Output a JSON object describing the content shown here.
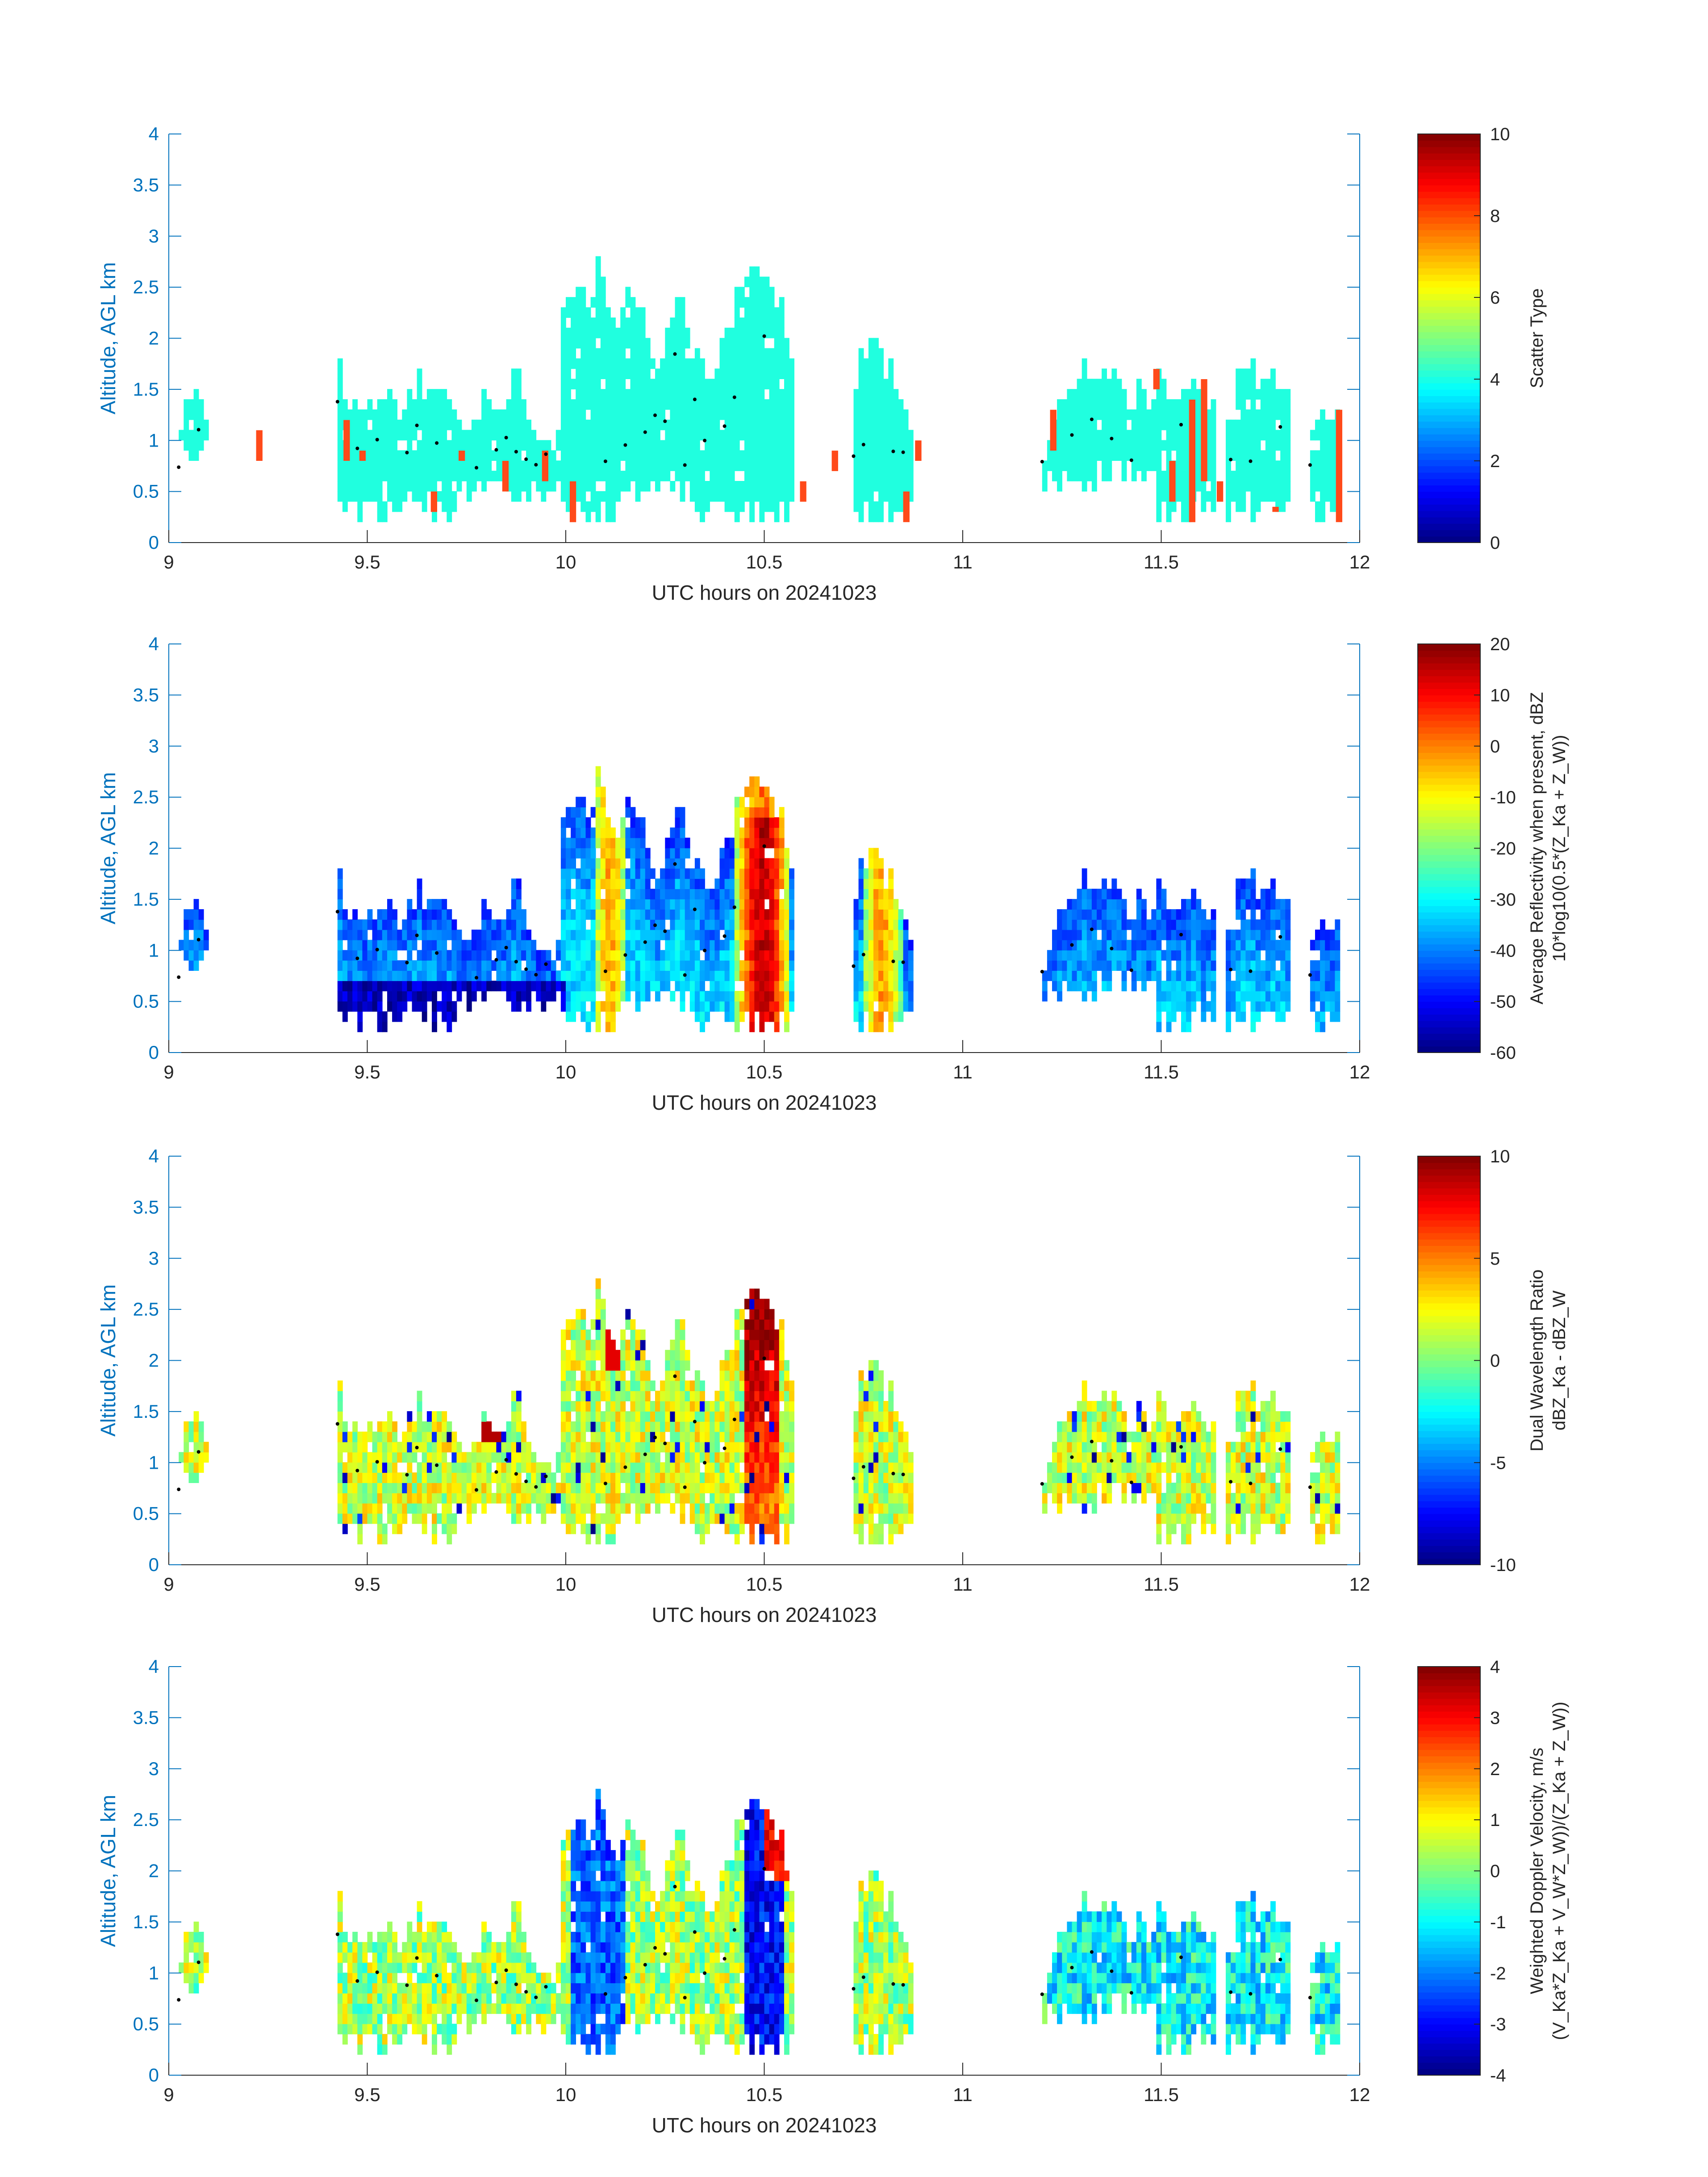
{
  "figure": {
    "x_range": [
      9,
      12
    ],
    "x_ticks": [
      "9",
      "9.5",
      "10",
      "10.5",
      "11",
      "11.5",
      "12"
    ],
    "y_range": [
      0,
      4
    ],
    "y_ticks": [
      "0",
      "0.5",
      "1",
      "1.5",
      "2",
      "2.5",
      "3",
      "3.5",
      "4"
    ],
    "xlabel": "UTC hours on 20241023",
    "ylabel": "Altitude, AGL km",
    "axis_color": "#0072BD",
    "tick_text_color": "#0072BD"
  },
  "chart_data": [
    {
      "type": "heatmap",
      "xlabel": "UTC hours on 20241023",
      "ylabel": "Altitude, AGL km",
      "xlim": [
        9,
        12
      ],
      "ylim": [
        0,
        4
      ],
      "colorbar": {
        "label_lines": [
          "Scatter Type"
        ],
        "range": [
          0,
          10
        ],
        "ticks": [
          "0",
          "2",
          "4",
          "6",
          "8",
          "10"
        ],
        "colormap": "jet"
      },
      "field": "scatter",
      "clusters": [
        {
          "x0": 9.02,
          "x1": 9.1,
          "tops": [
            1.05,
            1.3,
            1.5,
            1.45,
            1.35,
            1.2
          ],
          "base": 0.8
        },
        {
          "x0": 9.42,
          "x1": 9.72,
          "tops": [
            1.8,
            1.2,
            1.4,
            1.3,
            1.5,
            1.2,
            1.6,
            1.3,
            1.4,
            1.1
          ],
          "base": 0.2
        },
        {
          "x0": 9.72,
          "x1": 9.98,
          "tops": [
            1.1,
            1.0,
            1.4,
            1.2,
            1.6,
            1.1,
            0.9,
            1.0
          ],
          "base": 0.4
        },
        {
          "x0": 9.98,
          "x1": 10.12,
          "tops": [
            2.0,
            2.3,
            2.6,
            2.2,
            2.7,
            2.4,
            1.9
          ],
          "base": 0.2
        },
        {
          "x0": 10.12,
          "x1": 10.32,
          "tops": [
            1.9,
            2.5,
            2.2,
            1.5,
            2.1,
            2.3,
            1.6
          ],
          "base": 0.4
        },
        {
          "x0": 10.32,
          "x1": 10.42,
          "tops": [
            2.0,
            1.4,
            1.8,
            2.1
          ],
          "base": 0.2
        },
        {
          "x0": 10.42,
          "x1": 10.57,
          "tops": [
            2.4,
            2.6,
            2.55,
            2.5,
            2.4,
            2.2,
            1.6
          ],
          "base": 0.2
        },
        {
          "x0": 10.72,
          "x1": 10.87,
          "tops": [
            1.6,
            1.9,
            2.0,
            1.7,
            1.2,
            0.9
          ],
          "base": 0.2
        },
        {
          "x0": 11.2,
          "x1": 11.33,
          "tops": [
            0.9,
            1.2,
            1.4,
            1.6,
            1.5
          ],
          "base": 0.5
        },
        {
          "x0": 11.33,
          "x1": 11.48,
          "tops": [
            1.5,
            1.6,
            1.3,
            1.4,
            1.2
          ],
          "base": 0.6
        },
        {
          "x0": 11.48,
          "x1": 11.63,
          "tops": [
            1.6,
            1.5,
            1.4,
            1.5,
            1.2
          ],
          "base": 0.2
        },
        {
          "x0": 11.66,
          "x1": 11.82,
          "tops": [
            1.0,
            1.6,
            1.6,
            1.5,
            1.6,
            1.2
          ],
          "base": 0.2
        },
        {
          "x0": 11.87,
          "x1": 11.94,
          "tops": [
            1.0,
            1.2,
            1.1,
            1.2
          ],
          "base": 0.2
        }
      ],
      "red_patches": [
        {
          "x": 9.22,
          "y0": 0.8,
          "y1": 1.1
        },
        {
          "x": 9.44,
          "y0": 0.8,
          "y1": 1.2
        },
        {
          "x": 9.48,
          "y0": 0.8,
          "y1": 0.9
        },
        {
          "x": 9.66,
          "y0": 0.3,
          "y1": 0.5
        },
        {
          "x": 9.73,
          "y0": 0.8,
          "y1": 0.9
        },
        {
          "x": 9.84,
          "y0": 0.5,
          "y1": 0.8
        },
        {
          "x": 9.94,
          "y0": 0.6,
          "y1": 0.9
        },
        {
          "x": 10.01,
          "y0": 0.2,
          "y1": 0.6
        },
        {
          "x": 10.59,
          "y0": 0.4,
          "y1": 0.6
        },
        {
          "x": 10.67,
          "y0": 0.7,
          "y1": 0.9
        },
        {
          "x": 10.85,
          "y0": 0.2,
          "y1": 0.5
        },
        {
          "x": 10.88,
          "y0": 0.8,
          "y1": 1.0
        },
        {
          "x": 11.22,
          "y0": 0.9,
          "y1": 1.3
        },
        {
          "x": 11.48,
          "y0": 1.5,
          "y1": 1.7
        },
        {
          "x": 11.52,
          "y0": 0.4,
          "y1": 0.8
        },
        {
          "x": 11.57,
          "y0": 0.2,
          "y1": 1.4
        },
        {
          "x": 11.6,
          "y0": 0.6,
          "y1": 1.6
        },
        {
          "x": 11.64,
          "y0": 0.4,
          "y1": 0.6
        },
        {
          "x": 11.78,
          "y0": 0.3,
          "y1": 0.35
        },
        {
          "x": 11.94,
          "y0": 0.2,
          "y1": 1.3
        }
      ]
    },
    {
      "type": "heatmap",
      "xlabel": "UTC hours on 20241023",
      "ylabel": "Altitude, AGL km",
      "xlim": [
        9,
        12
      ],
      "ylim": [
        0,
        4
      ],
      "colorbar": {
        "label_lines": [
          "Average Reflectivity when present, dBZ",
          "10*log10(0.5*(Z_Ka + Z_W))"
        ],
        "range": [
          -60,
          20
        ],
        "ticks": [
          "-60",
          "-50",
          "-40",
          "-30",
          "-20",
          "-10",
          "0",
          "10",
          "20"
        ],
        "colormap": "jet"
      },
      "field": "reflectivity"
    },
    {
      "type": "heatmap",
      "xlabel": "UTC hours on 20241023",
      "ylabel": "Altitude, AGL km",
      "xlim": [
        9,
        12
      ],
      "ylim": [
        0,
        4
      ],
      "colorbar": {
        "label_lines": [
          "Dual Wavelength Ratio",
          "dBZ_Ka - dBZ_W"
        ],
        "range": [
          -10,
          10
        ],
        "ticks": [
          "-10",
          "-5",
          "0",
          "5",
          "10"
        ],
        "colormap": "jet"
      },
      "field": "dwr"
    },
    {
      "type": "heatmap",
      "xlabel": "UTC hours on 20241023",
      "ylabel": "Altitude, AGL km",
      "xlim": [
        9,
        12
      ],
      "ylim": [
        0,
        4
      ],
      "colorbar": {
        "label_lines": [
          "Weighted Doppler Velocity, m/s",
          "(V_Ka*Z_Ka + V_W*Z_W))/(Z_Ka + Z_W))"
        ],
        "range": [
          -4,
          4
        ],
        "ticks": [
          "-4",
          "-3",
          "-2",
          "-1",
          "0",
          "1",
          "2",
          "3",
          "4"
        ],
        "colormap": "jet"
      },
      "field": "velocity"
    }
  ]
}
